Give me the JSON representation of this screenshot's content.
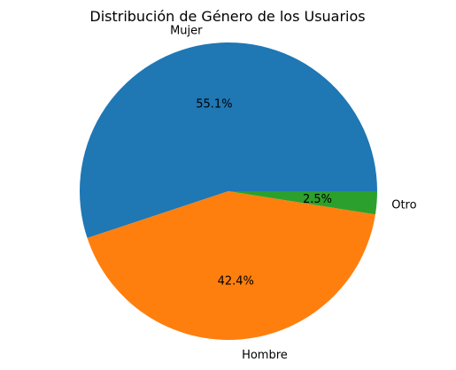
{
  "chart_data": {
    "type": "pie",
    "title": "Distribución de Género de los Usuarios",
    "slices": [
      {
        "label": "Mujer",
        "value": 55.1,
        "pct_label": "55.1%",
        "color": "#1f77b4"
      },
      {
        "label": "Hombre",
        "value": 42.4,
        "pct_label": "42.4%",
        "color": "#ff7f0e"
      },
      {
        "label": "Otro",
        "value": 2.5,
        "pct_label": "2.5%",
        "color": "#2ca02c"
      }
    ],
    "start_angle_deg": 0,
    "direction": "counterclockwise",
    "legend": "none"
  }
}
